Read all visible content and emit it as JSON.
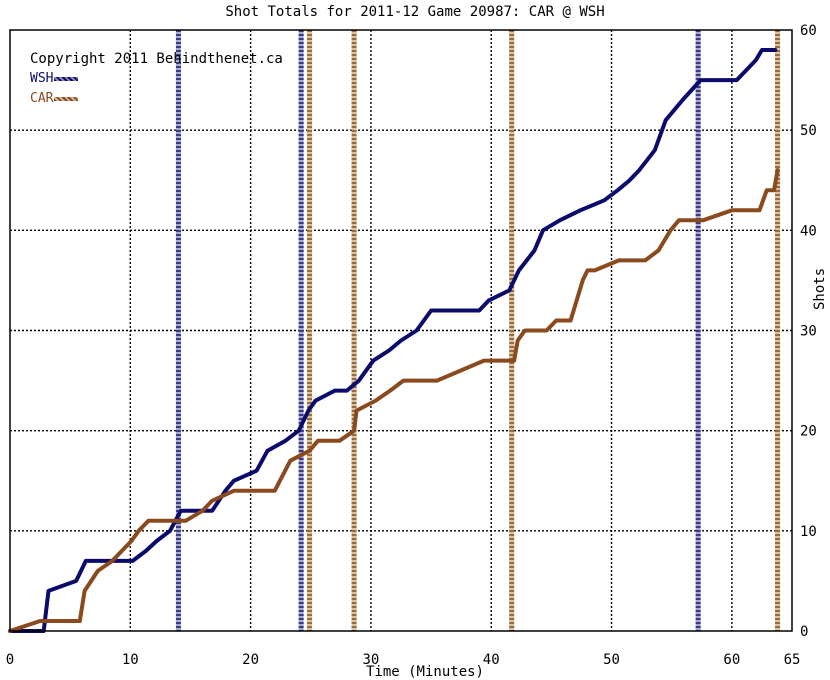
{
  "chart_data": {
    "type": "line",
    "title": "Shot Totals for 2011-12 Game 20987: CAR @ WSH",
    "xlabel": "Time (Minutes)",
    "ylabel": "Shots",
    "xlim": [
      0,
      65
    ],
    "ylim": [
      0,
      60
    ],
    "x_ticks": [
      0,
      10,
      20,
      30,
      40,
      50,
      60,
      65
    ],
    "y_ticks": [
      0,
      10,
      20,
      30,
      40,
      50,
      60
    ],
    "grid": true,
    "legend_position": "top-left",
    "copyright": "Copyright 2011 Behindthenet.ca",
    "series": [
      {
        "name": "WSH",
        "color": "#0b0b6e",
        "goals": [
          14.0,
          24.2,
          57.2
        ],
        "points": [
          [
            0,
            0
          ],
          [
            2.8,
            0
          ],
          [
            3.2,
            4
          ],
          [
            5.5,
            5
          ],
          [
            5.9,
            6
          ],
          [
            6.3,
            7
          ],
          [
            10.2,
            7
          ],
          [
            11.3,
            8
          ],
          [
            12.2,
            9
          ],
          [
            13.3,
            10
          ],
          [
            14.2,
            12
          ],
          [
            16.8,
            12
          ],
          [
            17.9,
            14
          ],
          [
            18.6,
            15
          ],
          [
            20.5,
            16
          ],
          [
            21.4,
            18
          ],
          [
            22.9,
            19
          ],
          [
            24.0,
            20
          ],
          [
            24.8,
            22
          ],
          [
            25.4,
            23
          ],
          [
            27.0,
            24
          ],
          [
            28.0,
            24
          ],
          [
            29.0,
            25
          ],
          [
            30.2,
            27
          ],
          [
            31.5,
            28
          ],
          [
            32.5,
            29
          ],
          [
            33.8,
            30
          ],
          [
            35.0,
            32
          ],
          [
            39.0,
            32
          ],
          [
            39.8,
            33
          ],
          [
            41.5,
            34
          ],
          [
            42.3,
            36
          ],
          [
            43.6,
            38
          ],
          [
            44.3,
            40
          ],
          [
            45.7,
            41
          ],
          [
            47.4,
            42
          ],
          [
            49.4,
            43
          ],
          [
            50.5,
            44
          ],
          [
            51.5,
            45
          ],
          [
            52.3,
            46
          ],
          [
            53.6,
            48
          ],
          [
            54.5,
            51
          ],
          [
            55.9,
            53
          ],
          [
            57.4,
            55
          ],
          [
            60.4,
            55
          ],
          [
            61.2,
            56
          ],
          [
            62.0,
            57
          ],
          [
            62.5,
            58
          ],
          [
            63.6,
            58
          ]
        ]
      },
      {
        "name": "CAR",
        "color": "#8b4a1e",
        "goals": [
          24.9,
          28.6,
          41.7,
          63.8
        ],
        "points": [
          [
            0,
            0
          ],
          [
            2.5,
            1
          ],
          [
            5.8,
            1
          ],
          [
            6.2,
            4
          ],
          [
            7.3,
            6
          ],
          [
            8.5,
            7
          ],
          [
            10.1,
            9
          ],
          [
            10.7,
            10
          ],
          [
            11.5,
            11
          ],
          [
            14.6,
            11
          ],
          [
            16.0,
            12
          ],
          [
            16.8,
            13
          ],
          [
            18.6,
            14
          ],
          [
            22.0,
            14
          ],
          [
            23.3,
            17
          ],
          [
            24.9,
            18
          ],
          [
            25.6,
            19
          ],
          [
            27.4,
            19
          ],
          [
            28.6,
            20
          ],
          [
            28.8,
            22
          ],
          [
            30.4,
            23
          ],
          [
            31.6,
            24
          ],
          [
            32.7,
            25
          ],
          [
            35.5,
            25
          ],
          [
            39.4,
            27
          ],
          [
            41.9,
            27
          ],
          [
            42.2,
            29
          ],
          [
            42.8,
            30
          ],
          [
            44.6,
            30
          ],
          [
            45.4,
            31
          ],
          [
            46.6,
            31
          ],
          [
            47.6,
            35
          ],
          [
            48.0,
            36
          ],
          [
            48.6,
            36
          ],
          [
            50.6,
            37
          ],
          [
            52.8,
            37
          ],
          [
            53.9,
            38
          ],
          [
            54.9,
            40
          ],
          [
            55.6,
            41
          ],
          [
            57.6,
            41
          ],
          [
            60.0,
            42
          ],
          [
            62.3,
            42
          ],
          [
            62.9,
            44
          ],
          [
            63.5,
            44
          ],
          [
            63.8,
            46
          ]
        ]
      }
    ]
  }
}
